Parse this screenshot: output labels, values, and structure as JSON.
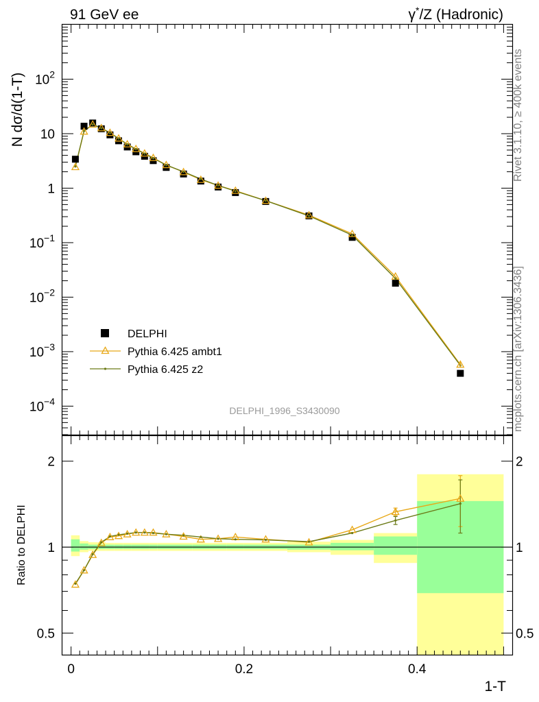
{
  "header": {
    "left_title": "91 GeV ee",
    "right_title_prefix": "γ",
    "right_title_sup": "*",
    "right_title_rest": "/Z (Hadronic)"
  },
  "side_text": {
    "upper": "Rivet 3.1.10, ≥ 400k events",
    "lower": "mcplots.cern.ch [arXiv:1306.3436]"
  },
  "analysis_label": "DELPHI_1996_S3430090",
  "colors": {
    "data": "#000000",
    "ambt1": "#e8a818",
    "z2": "#6b7a16",
    "band_inner": "#99ff99",
    "band_outer": "#ffff99"
  },
  "chart_data": [
    {
      "type": "scatter",
      "scale": "log",
      "ylabel": "N dσ/d(1-T)",
      "xlim": [
        -0.01,
        0.51
      ],
      "ylim": [
        3e-05,
        1000
      ],
      "yticks": [
        {
          "value": 0.0001,
          "base": "10",
          "exp": "−4"
        },
        {
          "value": 0.001,
          "base": "10",
          "exp": "−3"
        },
        {
          "value": 0.01,
          "base": "10",
          "exp": "−2"
        },
        {
          "value": 0.1,
          "base": "10",
          "exp": "−1"
        },
        {
          "value": 1,
          "base": "1",
          "exp": ""
        },
        {
          "value": 10,
          "base": "10",
          "exp": ""
        },
        {
          "value": 100,
          "base": "10",
          "exp": "2"
        }
      ],
      "legend_position": "bottom-left",
      "x": [
        0.005,
        0.015,
        0.025,
        0.035,
        0.045,
        0.055,
        0.065,
        0.075,
        0.085,
        0.095,
        0.11,
        0.13,
        0.15,
        0.17,
        0.19,
        0.225,
        0.275,
        0.325,
        0.375,
        0.45
      ],
      "series": [
        {
          "name": "DELPHI",
          "marker": "square",
          "values": [
            3.4,
            13.7,
            15.7,
            12.3,
            9.5,
            7.4,
            5.7,
            4.65,
            3.85,
            3.2,
            2.4,
            1.82,
            1.35,
            1.05,
            0.83,
            0.57,
            0.31,
            0.125,
            0.018,
            0.0004
          ]
        },
        {
          "name": "Pythia 6.425 ambt1",
          "marker": "triangle",
          "values": [
            2.45,
            11.0,
            14.8,
            12.7,
            10.4,
            8.2,
            6.4,
            5.25,
            4.35,
            3.6,
            2.67,
            1.98,
            1.43,
            1.12,
            0.9,
            0.59,
            0.32,
            0.145,
            0.024,
            0.00058
          ]
        },
        {
          "name": "Pythia 6.425 z2",
          "marker": "dot",
          "values": [
            2.5,
            11.2,
            14.7,
            12.6,
            10.3,
            8.15,
            6.35,
            5.2,
            4.3,
            3.55,
            2.65,
            2.0,
            1.47,
            1.12,
            0.88,
            0.59,
            0.31,
            0.137,
            0.022,
            0.00056
          ]
        }
      ]
    },
    {
      "type": "line",
      "xlabel": "1-T",
      "ylabel": "Ratio to DELPHI",
      "xlim": [
        -0.01,
        0.51
      ],
      "ylim": [
        0.42,
        2.45
      ],
      "scale": "log",
      "xticks": [
        0,
        0.2,
        0.4
      ],
      "xtick_labels": [
        "0",
        "0.2",
        "0.4"
      ],
      "yticks": [
        0.5,
        1,
        2
      ],
      "ytick_labels": [
        "0.5",
        "1",
        "2"
      ],
      "reference_line": 1,
      "bins": [
        [
          0.0,
          0.01
        ],
        [
          0.01,
          0.02
        ],
        [
          0.02,
          0.03
        ],
        [
          0.03,
          0.04
        ],
        [
          0.04,
          0.05
        ],
        [
          0.05,
          0.06
        ],
        [
          0.06,
          0.07
        ],
        [
          0.07,
          0.08
        ],
        [
          0.08,
          0.09
        ],
        [
          0.09,
          0.1
        ],
        [
          0.1,
          0.12
        ],
        [
          0.12,
          0.14
        ],
        [
          0.14,
          0.16
        ],
        [
          0.16,
          0.18
        ],
        [
          0.18,
          0.2
        ],
        [
          0.2,
          0.25
        ],
        [
          0.25,
          0.3
        ],
        [
          0.3,
          0.35
        ],
        [
          0.35,
          0.4
        ],
        [
          0.4,
          0.5
        ]
      ],
      "band_inner": [
        [
          0.965,
          1.065
        ],
        [
          0.98,
          1.03
        ],
        [
          0.985,
          1.02
        ],
        [
          0.985,
          1.02
        ],
        [
          0.985,
          1.02
        ],
        [
          0.985,
          1.02
        ],
        [
          0.985,
          1.02
        ],
        [
          0.985,
          1.02
        ],
        [
          0.985,
          1.02
        ],
        [
          0.985,
          1.02
        ],
        [
          0.985,
          1.02
        ],
        [
          0.985,
          1.02
        ],
        [
          0.985,
          1.02
        ],
        [
          0.985,
          1.02
        ],
        [
          0.985,
          1.02
        ],
        [
          0.985,
          1.02
        ],
        [
          0.98,
          1.02
        ],
        [
          0.975,
          1.035
        ],
        [
          0.94,
          1.09
        ],
        [
          0.69,
          1.45
        ]
      ],
      "band_outer": [
        [
          0.93,
          1.1
        ],
        [
          0.96,
          1.05
        ],
        [
          0.97,
          1.04
        ],
        [
          0.97,
          1.04
        ],
        [
          0.97,
          1.035
        ],
        [
          0.97,
          1.035
        ],
        [
          0.97,
          1.035
        ],
        [
          0.97,
          1.035
        ],
        [
          0.97,
          1.035
        ],
        [
          0.97,
          1.035
        ],
        [
          0.97,
          1.035
        ],
        [
          0.97,
          1.035
        ],
        [
          0.97,
          1.035
        ],
        [
          0.97,
          1.035
        ],
        [
          0.97,
          1.035
        ],
        [
          0.97,
          1.035
        ],
        [
          0.96,
          1.045
        ],
        [
          0.94,
          1.06
        ],
        [
          0.88,
          1.12
        ],
        [
          0.42,
          1.8
        ]
      ],
      "x": [
        0.005,
        0.015,
        0.025,
        0.035,
        0.045,
        0.055,
        0.065,
        0.075,
        0.085,
        0.095,
        0.11,
        0.13,
        0.15,
        0.17,
        0.19,
        0.225,
        0.275,
        0.325,
        0.375,
        0.45
      ],
      "series": [
        {
          "name": "Pythia 6.425 ambt1",
          "values": [
            0.74,
            0.83,
            0.94,
            1.035,
            1.085,
            1.095,
            1.11,
            1.125,
            1.125,
            1.125,
            1.11,
            1.09,
            1.065,
            1.07,
            1.085,
            1.065,
            1.04,
            1.15,
            1.33,
            1.48
          ],
          "errors": [
            0.005,
            0.005,
            0.005,
            0.005,
            0.005,
            0.005,
            0.005,
            0.005,
            0.005,
            0.005,
            0.005,
            0.005,
            0.005,
            0.005,
            0.005,
            0.005,
            0.01,
            0.015,
            0.04,
            0.3
          ]
        },
        {
          "name": "Pythia 6.425 z2",
          "values": [
            0.745,
            0.83,
            0.945,
            1.04,
            1.09,
            1.105,
            1.115,
            1.125,
            1.125,
            1.12,
            1.11,
            1.1,
            1.085,
            1.07,
            1.065,
            1.06,
            1.045,
            1.12,
            1.24,
            1.42
          ],
          "errors": [
            0.005,
            0.005,
            0.005,
            0.005,
            0.005,
            0.005,
            0.005,
            0.005,
            0.005,
            0.005,
            0.005,
            0.005,
            0.005,
            0.005,
            0.005,
            0.005,
            0.01,
            0.015,
            0.04,
            0.3
          ]
        }
      ]
    }
  ]
}
